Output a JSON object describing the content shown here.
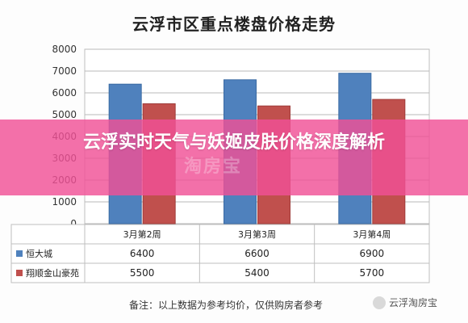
{
  "title": "云浮市区重点楼盘价格走势",
  "banner": "云浮实时天气与妖姬皮肤价格深度解析",
  "note": "备注：以上数据为参考均价，仅供购房者参考",
  "watermark": "云浮淘房宝",
  "faint_watermark": "淘房宝",
  "colors": {
    "series1": "#4f81bd",
    "series2": "#c0504d",
    "banner": "#f05096"
  },
  "chart_data": {
    "type": "bar",
    "categories": [
      "3月第2周",
      "3月第3周",
      "3月第4周"
    ],
    "series": [
      {
        "name": "恒大城",
        "values": [
          6400,
          6600,
          6900
        ]
      },
      {
        "name": "翔顺金山豪苑",
        "values": [
          5500,
          5400,
          5700
        ]
      }
    ],
    "title": "云浮市区重点楼盘价格走势",
    "ylim": [
      0,
      8000
    ],
    "yticks": [
      0,
      1000,
      2000,
      3000,
      4000,
      5000,
      6000,
      7000,
      8000
    ],
    "grid": true,
    "legend": "table-below"
  }
}
